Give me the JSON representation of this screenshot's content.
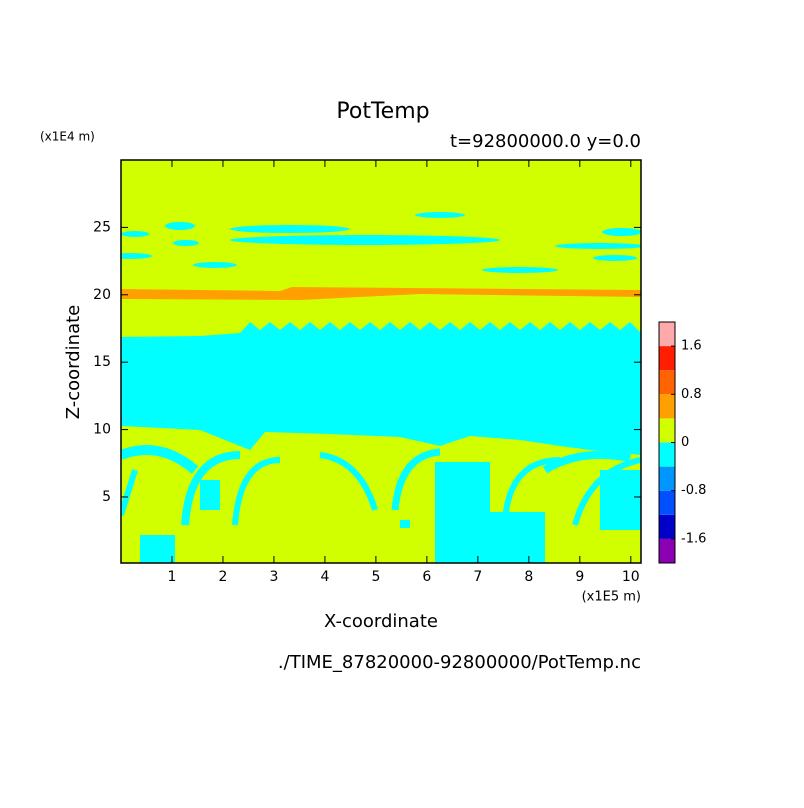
{
  "chart_data": {
    "type": "contour",
    "title": "PotTemp",
    "subtitle": "t=92800000.0 y=0.0",
    "x_label": "X-coordinate",
    "y_label": "Z-coordinate",
    "x_unit": "(x1E5 m)",
    "y_unit": "(x1E4 m)",
    "footer": "./TIME_87820000-92800000/PotTemp.nc",
    "xlim": [
      0,
      10.2
    ],
    "xticks": [
      1,
      2,
      3,
      4,
      5,
      6,
      7,
      8,
      9,
      10
    ],
    "ylim": [
      0.1,
      30
    ],
    "yticks": [
      5,
      10,
      15,
      20,
      25
    ],
    "colorbar": {
      "levels": [
        -2.0,
        -1.6,
        -1.2,
        -0.8,
        -0.4,
        0,
        0.4,
        0.8,
        1.2,
        1.6,
        2.0
      ],
      "colors": [
        "#8c00b4",
        "#0000c8",
        "#0050ff",
        "#0096ff",
        "#00ffff",
        "#d2ff00",
        "#ffa000",
        "#ff6400",
        "#ff1e00",
        "#ffaaaa"
      ],
      "ticks": [
        -1.6,
        -0.8,
        0,
        0.8,
        1.6
      ]
    }
  }
}
